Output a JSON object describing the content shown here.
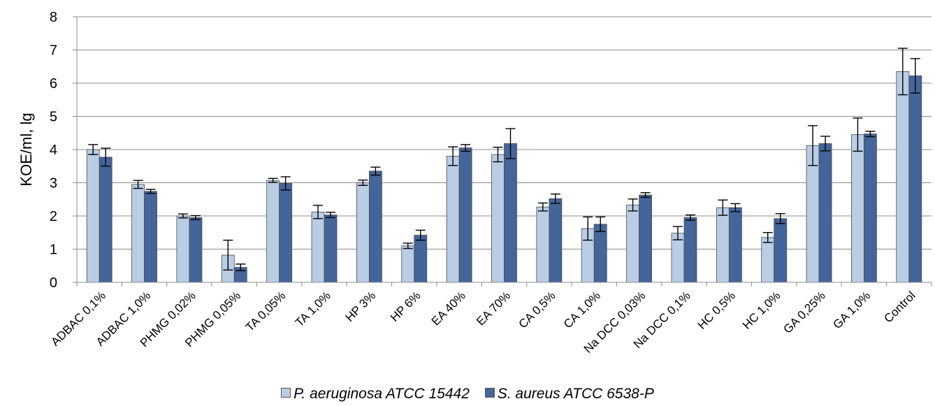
{
  "chart_data": {
    "type": "bar",
    "ylabel": "KOE/ml, lg",
    "ylim": [
      0,
      8
    ],
    "yticks": [
      0,
      1,
      2,
      3,
      4,
      5,
      6,
      7,
      8
    ],
    "grid": true,
    "legend_position": "bottom",
    "categories": [
      "ADBAC 0,1%",
      "ADBAC 1,0%",
      "PHMG 0,02%",
      "PHMG 0,05%",
      "TA 0,05%",
      "TA 1,0%",
      "HP 3%",
      "HP 6%",
      "EA 40%",
      "EA 70%",
      "CA 0,5%",
      "CA 1,0%",
      "Na DCC 0,03%",
      "Na DCC 0,1%",
      "HC 0,5%",
      "HC 1,0%",
      "GA 0,25%",
      "GA 1,0%",
      "Control"
    ],
    "series": [
      {
        "name": "P. aeruginosa ATCC 15442",
        "color": "#b9cde5",
        "values": [
          4.0,
          2.95,
          2.0,
          0.82,
          3.07,
          2.12,
          3.0,
          1.1,
          3.8,
          3.85,
          2.27,
          1.62,
          2.33,
          1.48,
          2.25,
          1.35,
          4.12,
          4.45,
          6.35
        ],
        "errors": [
          0.15,
          0.12,
          0.06,
          0.45,
          0.06,
          0.2,
          0.08,
          0.08,
          0.28,
          0.22,
          0.12,
          0.35,
          0.18,
          0.2,
          0.23,
          0.15,
          0.6,
          0.5,
          0.7
        ]
      },
      {
        "name": "S. aureus ATCC 6538-P",
        "color": "#43659a",
        "values": [
          3.77,
          2.74,
          1.95,
          0.45,
          2.98,
          2.03,
          3.35,
          1.42,
          4.05,
          4.18,
          2.52,
          1.75,
          2.63,
          1.95,
          2.25,
          1.92,
          4.18,
          4.47,
          6.22
        ],
        "errors": [
          0.27,
          0.06,
          0.06,
          0.1,
          0.2,
          0.08,
          0.12,
          0.15,
          0.1,
          0.45,
          0.14,
          0.22,
          0.07,
          0.08,
          0.12,
          0.15,
          0.22,
          0.08,
          0.52
        ]
      }
    ]
  }
}
